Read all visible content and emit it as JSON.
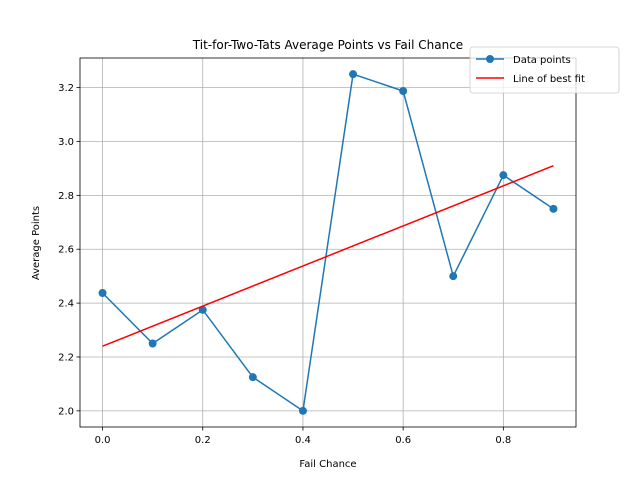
{
  "chart_data": {
    "type": "line",
    "title": "Tit-for-Two-Tats Average Points vs Fail Chance",
    "xlabel": "Fail Chance",
    "ylabel": "Average Points",
    "xlim": [
      -0.045,
      0.945
    ],
    "ylim": [
      1.94,
      3.31
    ],
    "xticks": [
      "0.0",
      "0.2",
      "0.4",
      "0.6",
      "0.8"
    ],
    "xtick_values": [
      0.0,
      0.2,
      0.4,
      0.6,
      0.8
    ],
    "yticks": [
      "2.0",
      "2.2",
      "2.4",
      "2.6",
      "2.8",
      "3.0",
      "3.2"
    ],
    "ytick_values": [
      2.0,
      2.2,
      2.4,
      2.6,
      2.8,
      3.0,
      3.2
    ],
    "grid": true,
    "legend_position": "top-right",
    "series": [
      {
        "name": "Data points",
        "kind": "line-markers",
        "color": "#1f77b4",
        "x": [
          0.0,
          0.1,
          0.2,
          0.3,
          0.4,
          0.5,
          0.6,
          0.7,
          0.8,
          0.9
        ],
        "y": [
          2.4375,
          2.25,
          2.375,
          2.125,
          2.0,
          3.25,
          3.1875,
          2.5,
          2.875,
          2.75
        ]
      },
      {
        "name": "Line of best fit",
        "kind": "line",
        "color": "#ff0000",
        "x": [
          0.0,
          0.9
        ],
        "y": [
          2.24,
          2.91
        ]
      }
    ]
  }
}
